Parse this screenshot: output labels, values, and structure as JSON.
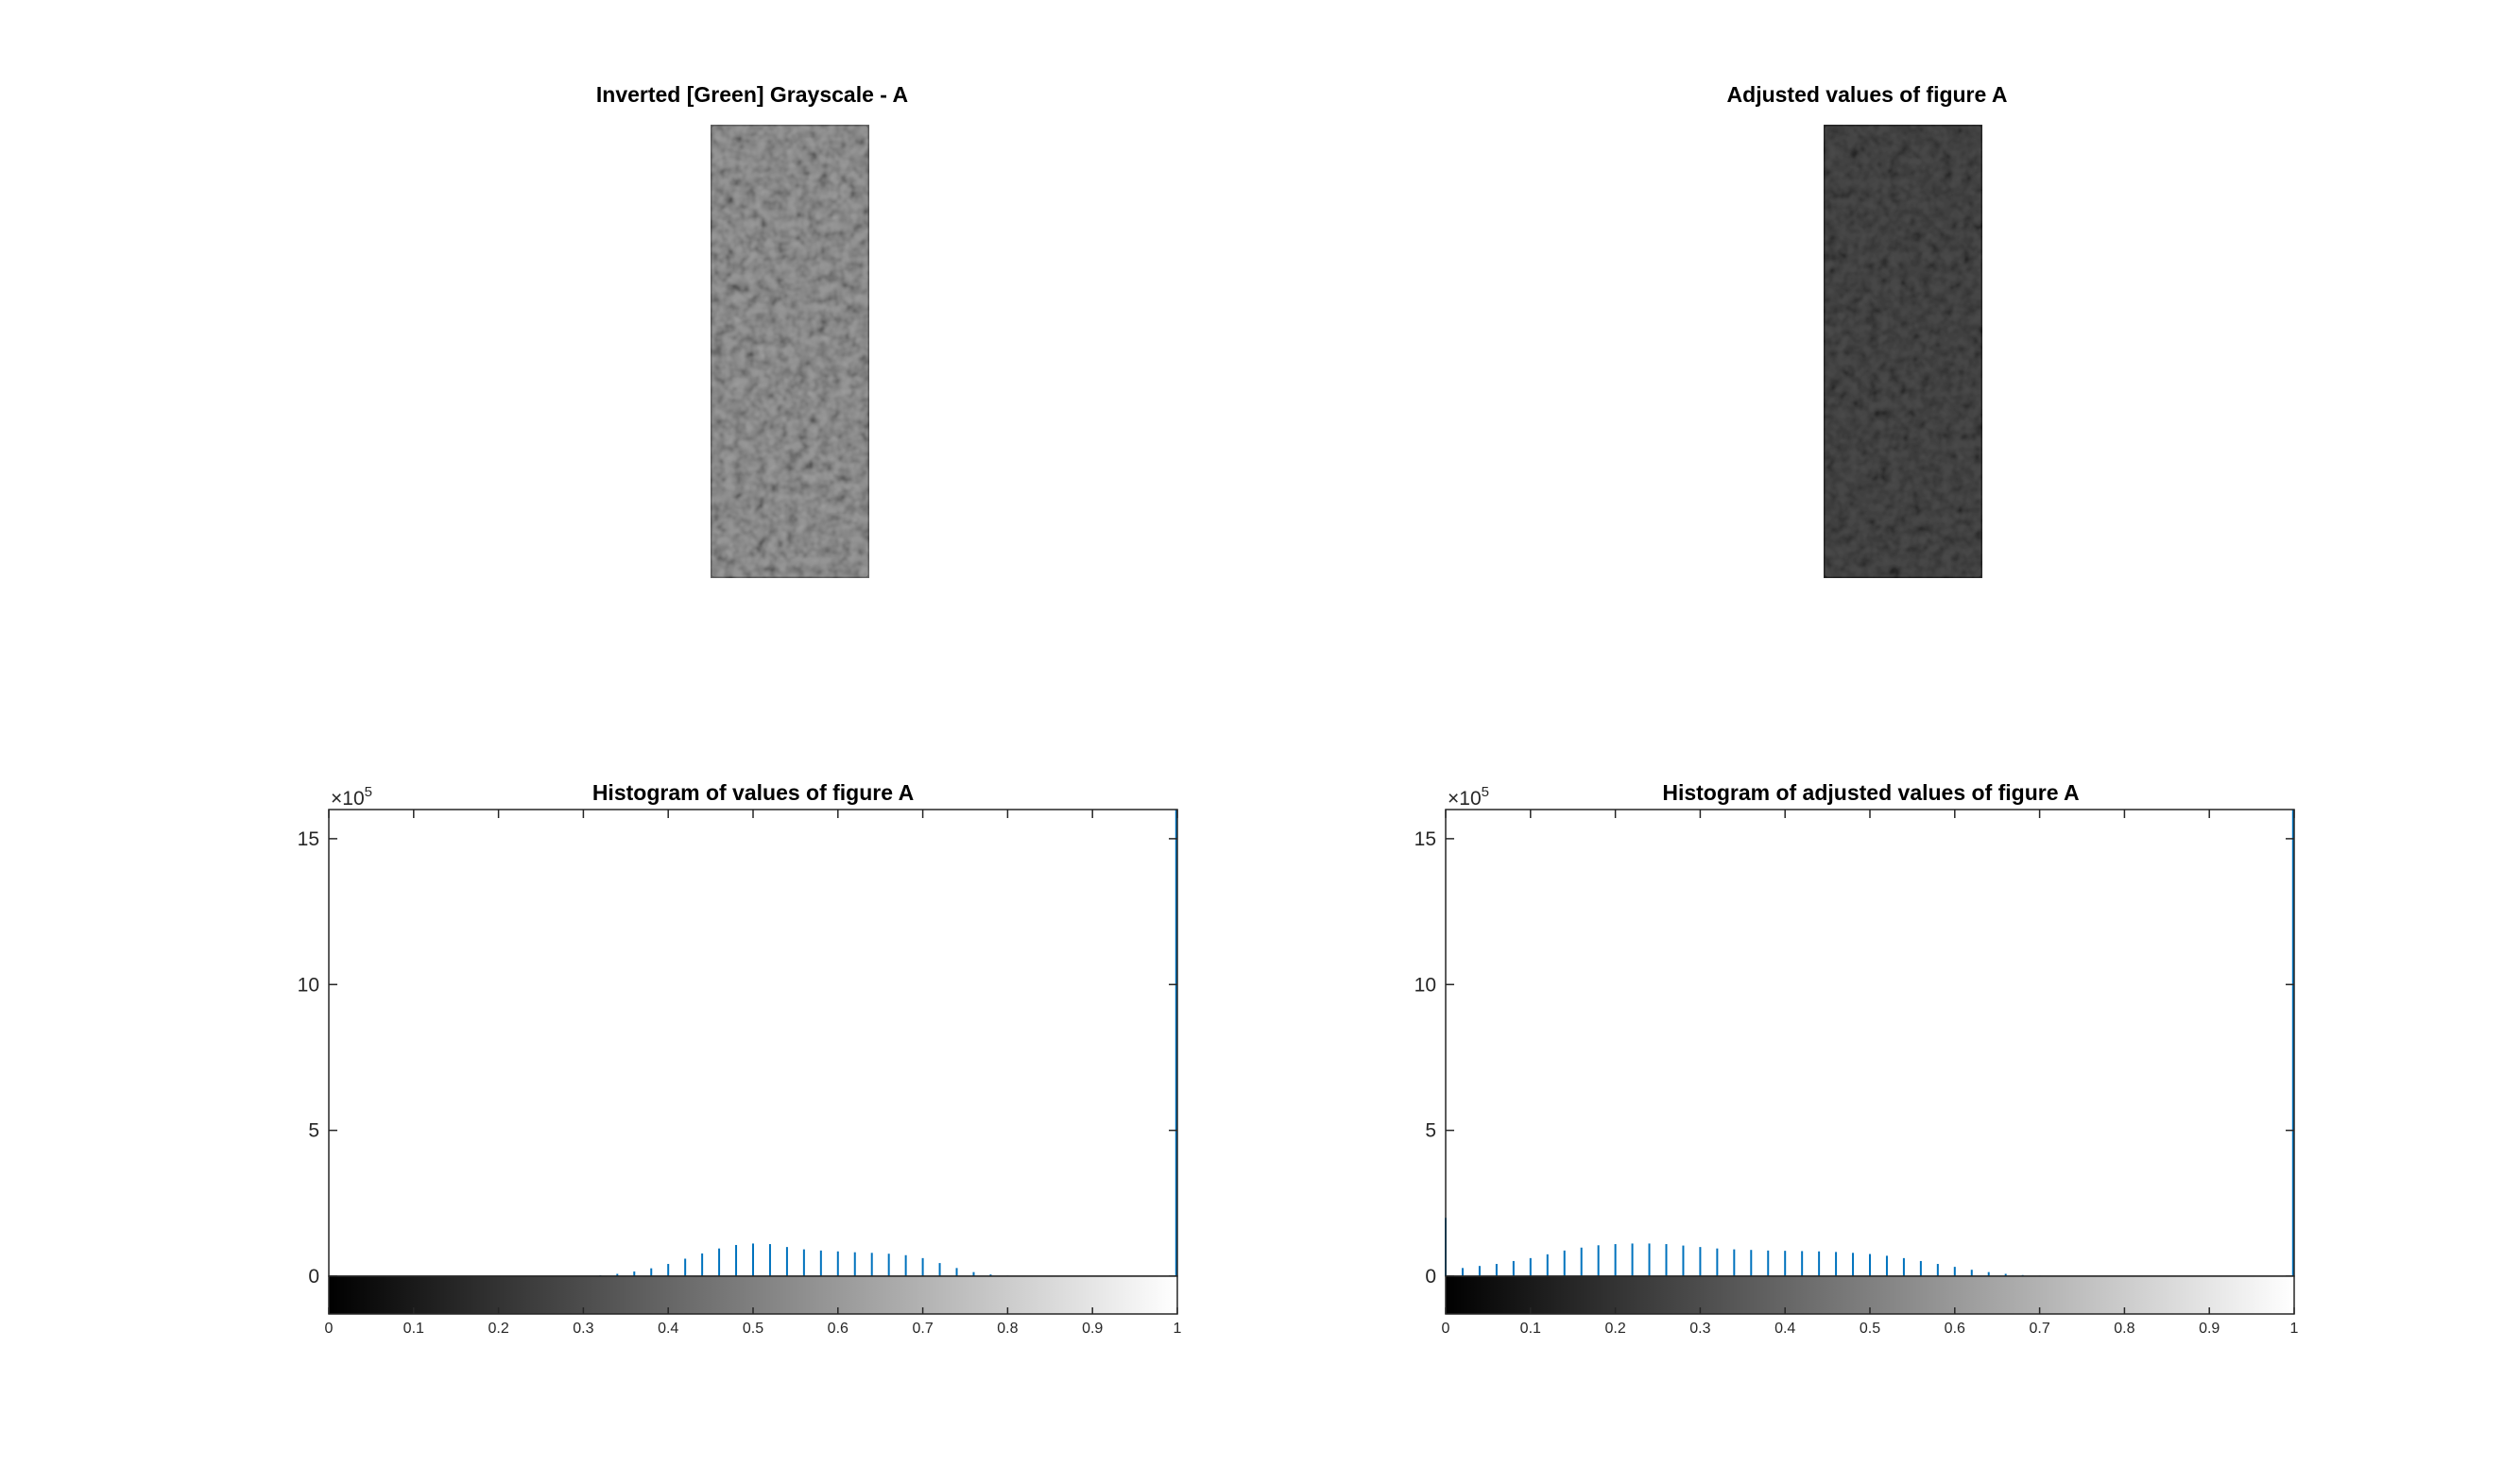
{
  "figure": {
    "images": [
      {
        "title": "Inverted [Green] Grayscale - A",
        "tone": "light"
      },
      {
        "title": "Adjusted values of figure A",
        "tone": "dark"
      }
    ]
  },
  "chart_data": [
    {
      "type": "bar",
      "title": "Histogram of values of figure A",
      "xlabel": "",
      "ylabel": "",
      "xlim": [
        0,
        1
      ],
      "ylim": [
        0,
        1600000
      ],
      "y_exponent_label": "×10",
      "y_exponent_power": "5",
      "yticks": [
        0,
        500000,
        1000000,
        1500000
      ],
      "ytick_labels": [
        "0",
        "5",
        "10",
        "15"
      ],
      "xticks": [
        0,
        0.1,
        0.2,
        0.3,
        0.4,
        0.5,
        0.6,
        0.7,
        0.8,
        0.9,
        1
      ],
      "xtick_labels": [
        "0",
        "0.1",
        "0.2",
        "0.3",
        "0.4",
        "0.5",
        "0.6",
        "0.7",
        "0.8",
        "0.9",
        "1"
      ],
      "colorbar": "gray",
      "color": "#0072BD",
      "grid": false,
      "x": [
        0.3,
        0.32,
        0.34,
        0.36,
        0.38,
        0.4,
        0.42,
        0.44,
        0.46,
        0.48,
        0.5,
        0.52,
        0.54,
        0.56,
        0.58,
        0.6,
        0.62,
        0.64,
        0.66,
        0.68,
        0.7,
        0.72,
        0.74,
        0.76,
        0.78,
        0.8,
        1.0
      ],
      "values": [
        1000,
        3000,
        8000,
        16000,
        27000,
        42000,
        60000,
        78000,
        95000,
        107000,
        112000,
        110000,
        100000,
        92000,
        88000,
        85000,
        82000,
        80000,
        77000,
        72000,
        62000,
        45000,
        28000,
        14000,
        6000,
        2000,
        1600000
      ]
    },
    {
      "type": "bar",
      "title": "Histogram of adjusted values of figure A",
      "xlabel": "",
      "ylabel": "",
      "xlim": [
        0,
        1
      ],
      "ylim": [
        0,
        1600000
      ],
      "y_exponent_label": "×10",
      "y_exponent_power": "5",
      "yticks": [
        0,
        500000,
        1000000,
        1500000
      ],
      "ytick_labels": [
        "0",
        "5",
        "10",
        "15"
      ],
      "xticks": [
        0,
        0.1,
        0.2,
        0.3,
        0.4,
        0.5,
        0.6,
        0.7,
        0.8,
        0.9,
        1
      ],
      "xtick_labels": [
        "0",
        "0.1",
        "0.2",
        "0.3",
        "0.4",
        "0.5",
        "0.6",
        "0.7",
        "0.8",
        "0.9",
        "1"
      ],
      "colorbar": "gray",
      "color": "#0072BD",
      "grid": false,
      "x": [
        0.0,
        0.02,
        0.04,
        0.06,
        0.08,
        0.1,
        0.12,
        0.14,
        0.16,
        0.18,
        0.2,
        0.22,
        0.24,
        0.26,
        0.28,
        0.3,
        0.32,
        0.34,
        0.36,
        0.38,
        0.4,
        0.42,
        0.44,
        0.46,
        0.48,
        0.5,
        0.52,
        0.54,
        0.56,
        0.58,
        0.6,
        0.62,
        0.64,
        0.66,
        0.68,
        0.7,
        1.0
      ],
      "values": [
        200000,
        28000,
        35000,
        42000,
        52000,
        62000,
        75000,
        88000,
        98000,
        106000,
        110000,
        112000,
        112000,
        110000,
        105000,
        100000,
        95000,
        92000,
        90000,
        88000,
        87000,
        86000,
        85000,
        83000,
        80000,
        76000,
        70000,
        62000,
        52000,
        42000,
        32000,
        22000,
        14000,
        8000,
        4000,
        2000,
        1600000
      ]
    }
  ]
}
